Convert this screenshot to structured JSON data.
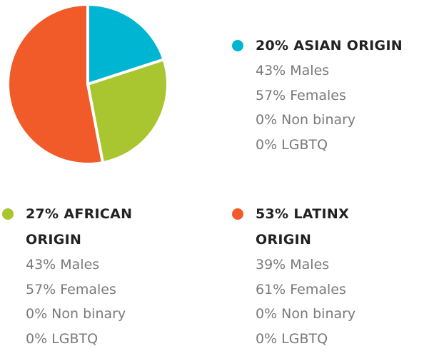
{
  "chart_data": {
    "type": "pie",
    "categories": [
      "ASIAN ORIGIN",
      "AFRICAN ORIGIN",
      "LATINX ORIGIN"
    ],
    "values": [
      20,
      27,
      53
    ],
    "value_labels": [
      "20%",
      "27%",
      "53%"
    ],
    "colors": [
      "#00b5d1",
      "#a9c52f",
      "#f15a29"
    ],
    "details": [
      [
        "43% Males",
        "57% Females",
        "0% Non binary",
        "0% LGBTQ"
      ],
      [
        "43% Males",
        "57% Females",
        "0% Non binary",
        "0% LGBTQ"
      ],
      [
        "39% Males",
        "61% Females",
        "0% Non binary",
        "0% LGBTQ"
      ]
    ]
  }
}
